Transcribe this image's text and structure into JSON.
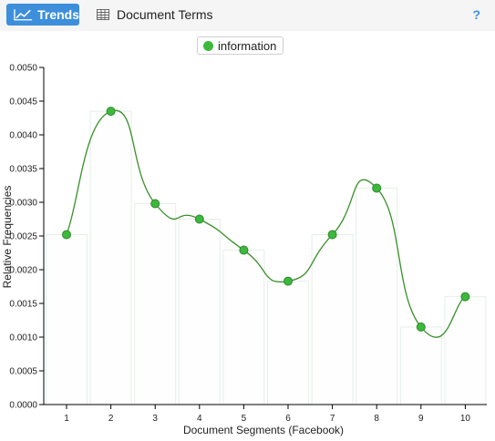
{
  "toolbar": {
    "trends_label": "Trends",
    "document_terms_label": "Document Terms",
    "help_label": "?"
  },
  "colors": {
    "accent": "#3d8fdb",
    "series": "#3cb93c",
    "series_line": "#3a8f2a"
  },
  "icons": {
    "trends": "line-chart-icon",
    "document_terms": "table-grid-icon"
  },
  "chart_data": {
    "type": "line",
    "title": "",
    "xlabel": "Document Segments (Facebook)",
    "ylabel": "Relative Frequencies",
    "categories": [
      "1",
      "2",
      "3",
      "4",
      "5",
      "6",
      "7",
      "8",
      "9",
      "10"
    ],
    "ylim": [
      0,
      0.005
    ],
    "yticks": [
      "0.0000",
      "0.0005",
      "0.0010",
      "0.0015",
      "0.0020",
      "0.0025",
      "0.0030",
      "0.0035",
      "0.0040",
      "0.0045",
      "0.0050"
    ],
    "series": [
      {
        "name": "information",
        "values": [
          0.00252,
          0.00435,
          0.00298,
          0.00275,
          0.00229,
          0.00183,
          0.00252,
          0.00321,
          0.00115,
          0.0016
        ]
      }
    ],
    "background_bars": true,
    "smooth": true,
    "legend_position": "top"
  }
}
